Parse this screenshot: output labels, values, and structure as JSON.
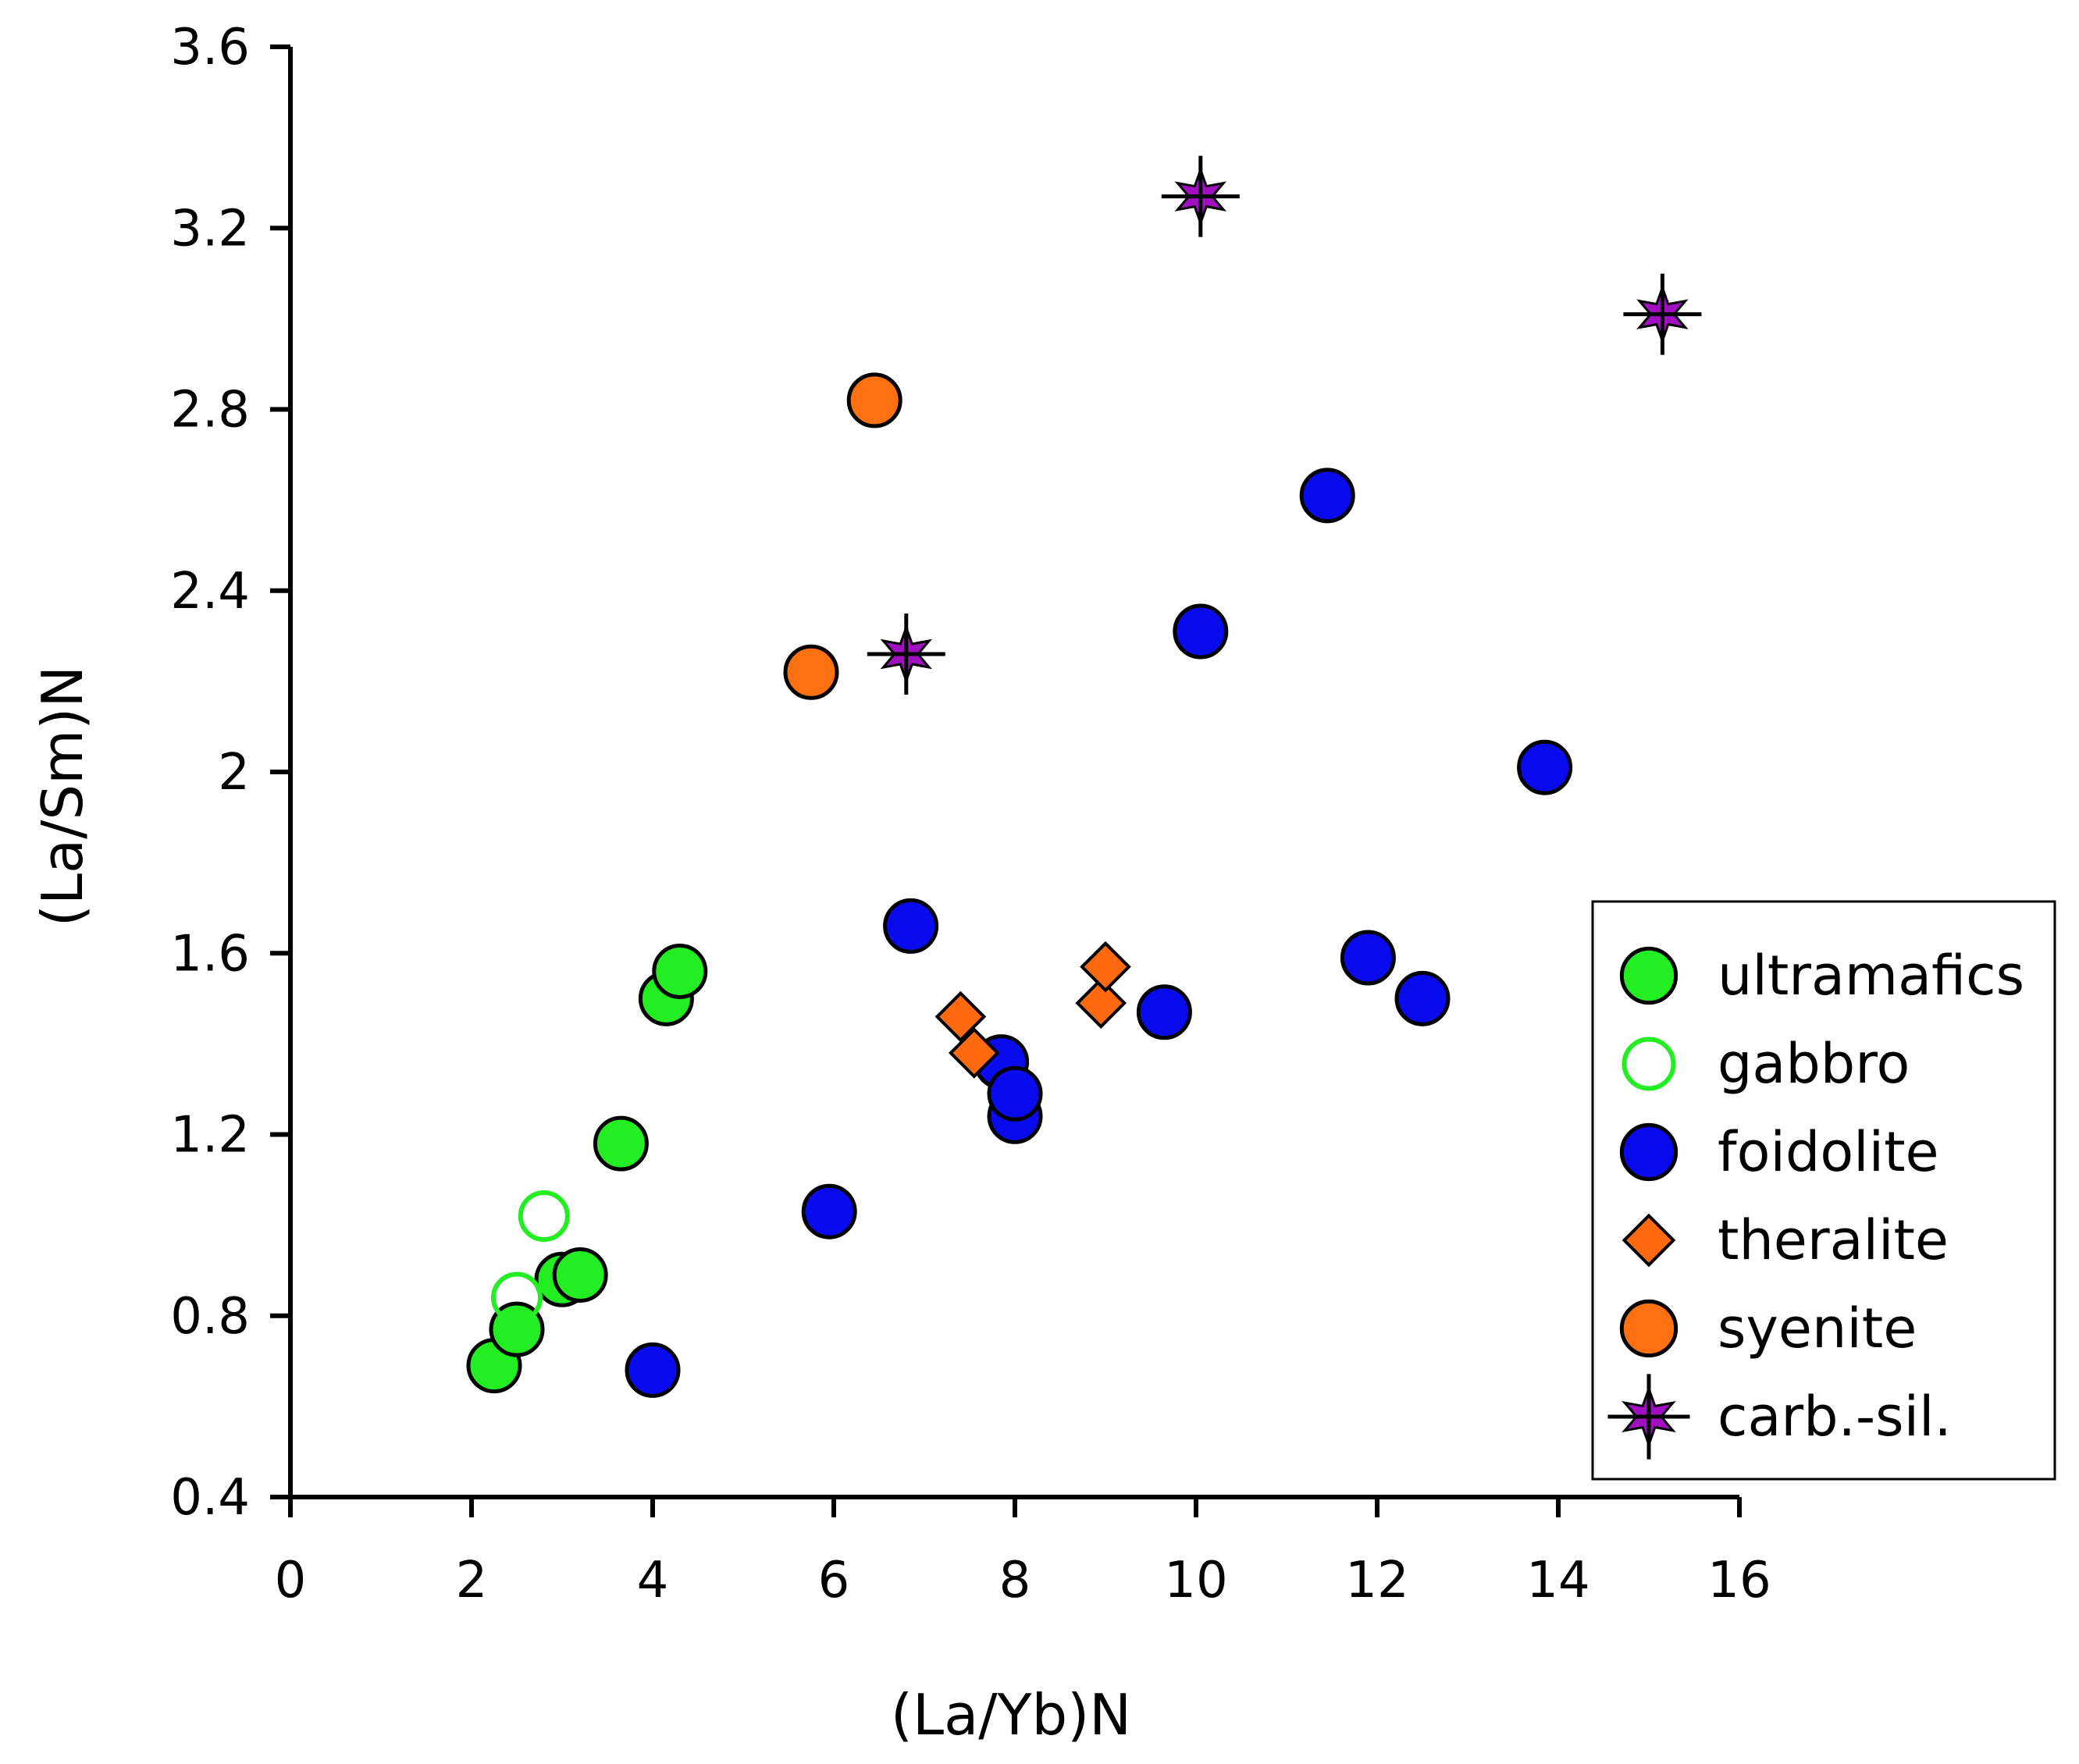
{
  "chart_data": {
    "type": "scatter",
    "title": "",
    "xlabel": "(La/Yb)N",
    "ylabel": "(La/Sm)N",
    "xlim": [
      0,
      16
    ],
    "ylim": [
      0.4,
      3.6
    ],
    "xticks": [
      0,
      2,
      4,
      6,
      8,
      10,
      12,
      14,
      16
    ],
    "yticks": [
      0.4,
      0.8,
      1.2,
      1.6,
      2.0,
      2.4,
      2.8,
      3.2,
      3.6
    ],
    "xtick_labels": [
      "0",
      "2",
      "4",
      "6",
      "8",
      "10",
      "12",
      "14",
      "16"
    ],
    "ytick_labels": [
      "0.4",
      "0.8",
      "1.2",
      "1.6",
      "2",
      "2.4",
      "2.8",
      "3.2",
      "3.6"
    ],
    "grid": false,
    "legend_position": "right",
    "series": [
      {
        "name": "ultramafics",
        "marker": "filled-circle",
        "color": "#22ee22",
        "points": [
          [
            2.25,
            0.69
          ],
          [
            2.5,
            0.77
          ],
          [
            3.0,
            0.88
          ],
          [
            3.2,
            0.89
          ],
          [
            3.65,
            1.18
          ],
          [
            4.15,
            1.5
          ],
          [
            4.3,
            1.56
          ]
        ]
      },
      {
        "name": "gabbro",
        "marker": "open-circle",
        "color": "#22ee22",
        "points": [
          [
            2.5,
            0.84
          ],
          [
            2.8,
            1.02
          ]
        ]
      },
      {
        "name": "foidolite",
        "marker": "filled-circle",
        "color": "#0a0aee",
        "points": [
          [
            4.0,
            0.68
          ],
          [
            5.95,
            1.03
          ],
          [
            6.85,
            1.66
          ],
          [
            7.85,
            1.36
          ],
          [
            8.0,
            1.24
          ],
          [
            8.0,
            1.29
          ],
          [
            9.65,
            1.47
          ],
          [
            10.05,
            2.31
          ],
          [
            11.45,
            2.61
          ],
          [
            11.9,
            1.59
          ],
          [
            12.5,
            1.5
          ],
          [
            13.85,
            2.01
          ]
        ]
      },
      {
        "name": "theralite",
        "marker": "diamond",
        "color": "#ff6a10",
        "points": [
          [
            7.4,
            1.46
          ],
          [
            7.55,
            1.38
          ],
          [
            8.95,
            1.49
          ],
          [
            9.0,
            1.57
          ]
        ]
      },
      {
        "name": "syenite",
        "marker": "filled-circle",
        "color": "#ff7010",
        "points": [
          [
            5.75,
            2.22
          ],
          [
            6.45,
            2.82
          ]
        ]
      },
      {
        "name": "carb.-sil.",
        "marker": "star",
        "color": "#a010c0",
        "points": [
          [
            6.8,
            2.26
          ],
          [
            10.05,
            3.27
          ],
          [
            15.15,
            3.01
          ]
        ]
      }
    ]
  }
}
